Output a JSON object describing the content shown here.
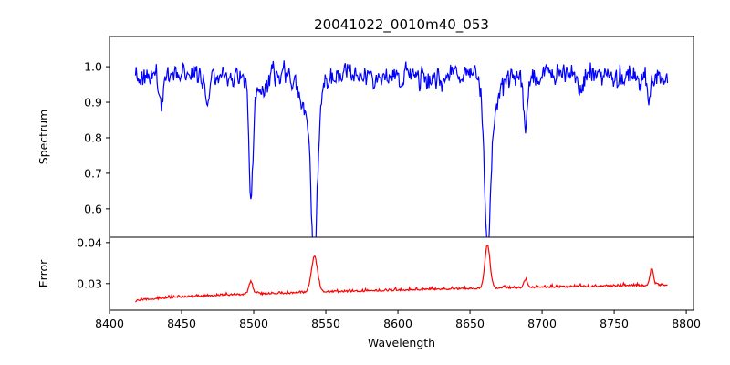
{
  "chart_data": {
    "type": "line",
    "title": "20041022_0010m40_053",
    "xlabel": "Wavelength",
    "xlim": [
      8400,
      8805
    ],
    "xticks": [
      8400,
      8450,
      8500,
      8550,
      8600,
      8650,
      8700,
      8750,
      8800
    ],
    "x_range": [
      8418,
      8787
    ],
    "grid": false,
    "panels": [
      {
        "name": "spectrum",
        "ylabel": "Spectrum",
        "ylim": [
          0.52,
          1.085
        ],
        "yticks": [
          "0.6",
          "0.7",
          "0.8",
          "0.9",
          "1.0"
        ],
        "color": "#0000ff",
        "continuum": 0.975,
        "noise": 0.03,
        "lines": [
          {
            "center": 8436,
            "depth": 0.1,
            "width": 1.2
          },
          {
            "center": 8468,
            "depth": 0.08,
            "width": 1.2
          },
          {
            "center": 8498.0,
            "depth": 0.29,
            "width": 1.4
          },
          {
            "center": 8503,
            "depth": 0.06,
            "width": 4.0
          },
          {
            "center": 8542.1,
            "depth": 0.42,
            "width": 2.0
          },
          {
            "center": 8539,
            "depth": 0.12,
            "width": 6.0
          },
          {
            "center": 8662.1,
            "depth": 0.43,
            "width": 2.0
          },
          {
            "center": 8665,
            "depth": 0.1,
            "width": 5.0
          },
          {
            "center": 8688.6,
            "depth": 0.15,
            "width": 1.2
          },
          {
            "center": 8727,
            "depth": 0.05,
            "width": 1.5
          },
          {
            "center": 8774,
            "depth": 0.07,
            "width": 1.5
          }
        ]
      },
      {
        "name": "error",
        "ylabel": "Error",
        "ylim": [
          0.0235,
          0.0413
        ],
        "yticks": [
          "0.03",
          "0.04"
        ],
        "color": "#ff0000",
        "base_start": 0.0255,
        "base_end": 0.0295,
        "noise": 0.0006,
        "bumps": [
          {
            "center": 8498.0,
            "height": 0.003,
            "width": 1.4
          },
          {
            "center": 8542.1,
            "height": 0.0085,
            "width": 2.2
          },
          {
            "center": 8662.1,
            "height": 0.0105,
            "width": 1.8
          },
          {
            "center": 8688.6,
            "height": 0.002,
            "width": 1.2
          },
          {
            "center": 8776,
            "height": 0.004,
            "width": 1.2
          }
        ]
      }
    ]
  }
}
